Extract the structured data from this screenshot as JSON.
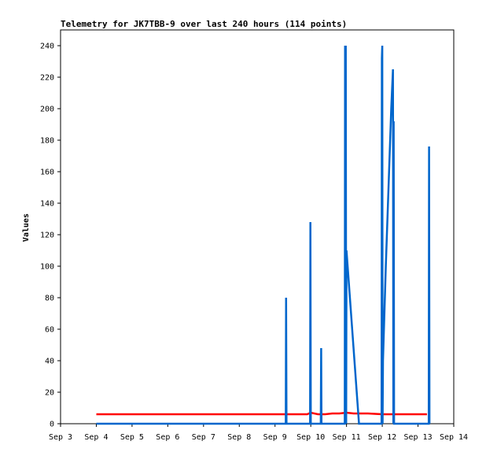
{
  "chart_data": {
    "type": "line",
    "title": "Telemetry for JK7TBB-9 over last 240 hours (114 points)",
    "xlabel": "",
    "ylabel": "Values",
    "x_tick_labels": [
      "Sep 3",
      "Sep 4",
      "Sep 5",
      "Sep 6",
      "Sep 7",
      "Sep 8",
      "Sep 9",
      "Sep 10",
      "Sep 11",
      "Sep 12",
      "Sep 13",
      "Sep 14"
    ],
    "xlim": [
      3,
      14
    ],
    "ylim": [
      0,
      250
    ],
    "yticks": [
      0,
      20,
      40,
      60,
      80,
      100,
      120,
      140,
      160,
      180,
      200,
      220,
      240
    ],
    "grid": false,
    "series": [
      {
        "color": "#ff0000",
        "x": [
          4.0,
          9.0,
          9.9,
          10.0,
          10.2,
          10.4,
          10.6,
          10.8,
          11.0,
          11.2,
          11.6,
          12.0,
          12.2,
          12.4,
          12.8,
          13.2,
          13.25
        ],
        "values": [
          6,
          6,
          6,
          7,
          6,
          6,
          6.5,
          6.5,
          7,
          6.5,
          6.5,
          6,
          6,
          6,
          6,
          6,
          6
        ]
      },
      {
        "color": "#0066cc",
        "x": [
          4.0,
          9.3,
          9.31,
          9.32,
          9.98,
          9.99,
          10.0,
          10.28,
          10.29,
          10.3,
          10.95,
          10.96,
          10.97,
          10.98,
          10.99,
          11.0,
          11.35,
          11.4,
          11.98,
          11.99,
          12.0,
          12.01,
          12.02,
          12.1,
          12.25,
          12.3,
          12.31,
          12.32,
          12.33,
          13.3,
          13.31,
          13.32
        ],
        "values": [
          0,
          0,
          80,
          0,
          0,
          128,
          0,
          0,
          48,
          0,
          0,
          240,
          0,
          240,
          0,
          110,
          0,
          0,
          0,
          232,
          240,
          0,
          40,
          100,
          200,
          225,
          0,
          192,
          0,
          0,
          176,
          0
        ]
      }
    ]
  }
}
